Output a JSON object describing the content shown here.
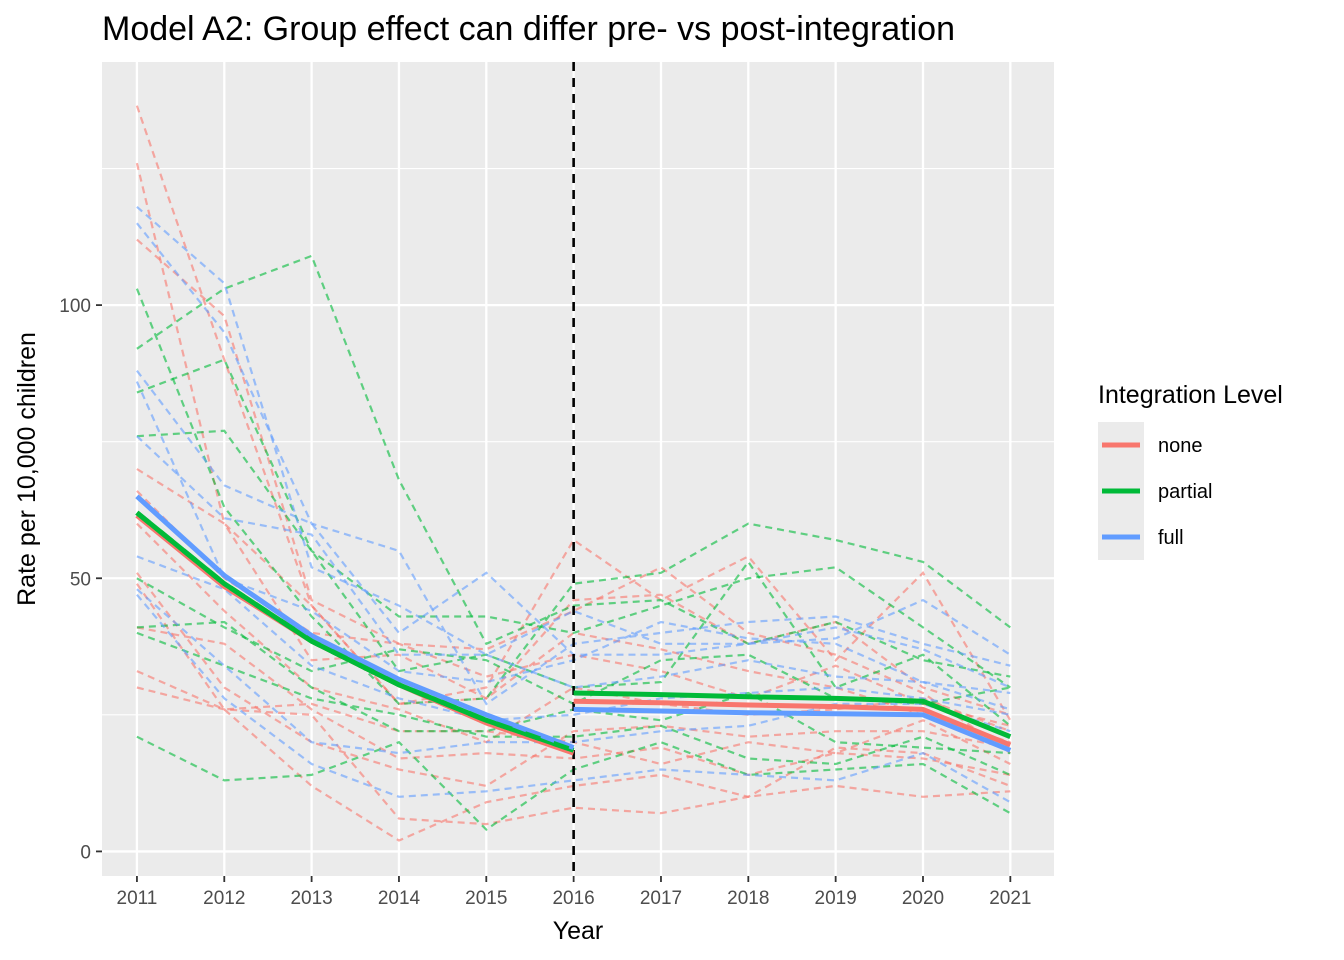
{
  "chart_data": {
    "type": "line",
    "title": "Model A2: Group effect can differ pre- vs post-integration",
    "xlabel": "Year",
    "ylabel": "Rate per 10,000 children",
    "x": [
      2011,
      2012,
      2013,
      2014,
      2015,
      2016,
      2017,
      2018,
      2019,
      2020,
      2021
    ],
    "xlim": [
      2010.6,
      2021.5
    ],
    "ylim": [
      -4.5,
      144.5
    ],
    "y_ticks": [
      0,
      50,
      100
    ],
    "x_ticks": [
      2011,
      2012,
      2013,
      2014,
      2015,
      2016,
      2017,
      2018,
      2019,
      2020,
      2021
    ],
    "grid": true,
    "vline": {
      "x": 2016,
      "style": "dashed",
      "color": "#000000"
    },
    "legend": {
      "title": "Integration Level",
      "position": "right",
      "entries": [
        {
          "label": "none",
          "color": "#F8766D"
        },
        {
          "label": "partial",
          "color": "#00BA38"
        },
        {
          "label": "full",
          "color": "#619CFF"
        }
      ]
    },
    "fitted": [
      {
        "name": "none",
        "color": "#F8766D",
        "pre": {
          "x": [
            2011,
            2012,
            2013,
            2014,
            2015,
            2016
          ],
          "y": [
            61.5,
            48.5,
            38.5,
            30.5,
            23.5,
            18.0
          ]
        },
        "post": {
          "x": [
            2016,
            2017,
            2018,
            2019,
            2020,
            2021
          ],
          "y": [
            27.5,
            27.2,
            26.8,
            26.5,
            26.0,
            19.5
          ]
        }
      },
      {
        "name": "partial",
        "color": "#00BA38",
        "pre": {
          "x": [
            2011,
            2012,
            2013,
            2014,
            2015,
            2016
          ],
          "y": [
            62.0,
            49.0,
            38.5,
            30.5,
            24.0,
            18.5
          ]
        },
        "post": {
          "x": [
            2016,
            2017,
            2018,
            2019,
            2020,
            2021
          ],
          "y": [
            29.0,
            28.7,
            28.3,
            28.0,
            27.5,
            21.0
          ]
        }
      },
      {
        "name": "full",
        "color": "#619CFF",
        "pre": {
          "x": [
            2011,
            2012,
            2013,
            2014,
            2015,
            2016
          ],
          "y": [
            65.0,
            50.5,
            39.5,
            31.5,
            25.0,
            19.0
          ]
        },
        "post": {
          "x": [
            2016,
            2017,
            2018,
            2019,
            2020,
            2021
          ],
          "y": [
            26.0,
            25.7,
            25.4,
            25.2,
            25.0,
            18.5
          ]
        }
      }
    ],
    "series": [
      {
        "group": "none",
        "color": "#F8766D",
        "values": [
          136.5,
          90,
          45,
          27,
          30,
          57,
          46,
          54,
          35,
          51,
          24
        ]
      },
      {
        "group": "none",
        "color": "#F8766D",
        "values": [
          126,
          60,
          45,
          27,
          28,
          46,
          47,
          38,
          42,
          30,
          25
        ]
      },
      {
        "group": "none",
        "color": "#F8766D",
        "values": [
          112,
          98,
          46,
          38,
          37,
          44,
          52,
          40,
          36,
          29,
          18
        ]
      },
      {
        "group": "none",
        "color": "#F8766D",
        "values": [
          70,
          60,
          35,
          36,
          28,
          40,
          37,
          33,
          30,
          25,
          20
        ]
      },
      {
        "group": "none",
        "color": "#F8766D",
        "values": [
          66,
          50,
          40,
          38,
          32,
          36,
          33,
          28,
          34,
          27,
          23
        ]
      },
      {
        "group": "none",
        "color": "#F8766D",
        "values": [
          60,
          44,
          30,
          26,
          20,
          30,
          27,
          25,
          26,
          28,
          22
        ]
      },
      {
        "group": "none",
        "color": "#F8766D",
        "values": [
          51,
          30,
          20,
          15,
          12,
          22,
          23,
          21,
          22,
          22,
          19
        ]
      },
      {
        "group": "none",
        "color": "#F8766D",
        "values": [
          49,
          26,
          27,
          22,
          22,
          20,
          16,
          20,
          18,
          24,
          16
        ]
      },
      {
        "group": "none",
        "color": "#F8766D",
        "values": [
          41,
          38,
          26,
          17,
          18,
          17,
          19,
          14,
          18,
          17,
          14
        ]
      },
      {
        "group": "none",
        "color": "#F8766D",
        "values": [
          33,
          26,
          12,
          2,
          9,
          12,
          14,
          10,
          19,
          18,
          12
        ]
      },
      {
        "group": "none",
        "color": "#F8766D",
        "values": [
          30,
          26,
          25,
          6,
          5,
          8,
          7,
          10,
          12,
          10,
          11
        ]
      },
      {
        "group": "partial",
        "color": "#00BA38",
        "values": [
          103,
          63,
          43,
          27,
          28,
          49,
          51,
          60,
          57,
          53,
          41
        ]
      },
      {
        "group": "partial",
        "color": "#00BA38",
        "values": [
          92,
          103,
          109,
          68,
          38,
          45,
          46,
          38,
          42,
          35,
          32
        ]
      },
      {
        "group": "partial",
        "color": "#00BA38",
        "values": [
          84,
          90,
          55,
          43,
          43,
          40,
          45,
          50,
          52,
          41,
          30
        ]
      },
      {
        "group": "partial",
        "color": "#00BA38",
        "values": [
          76,
          77,
          55,
          33,
          36,
          30,
          31,
          53,
          30,
          36,
          23
        ]
      },
      {
        "group": "partial",
        "color": "#00BA38",
        "values": [
          50,
          41,
          33,
          37,
          35,
          27,
          35,
          36,
          28,
          27,
          30
        ]
      },
      {
        "group": "partial",
        "color": "#00BA38",
        "values": [
          41,
          42,
          30,
          22,
          22,
          26,
          24,
          29,
          20,
          19,
          18
        ]
      },
      {
        "group": "partial",
        "color": "#00BA38",
        "values": [
          40,
          34,
          28,
          25,
          21,
          21,
          23,
          17,
          16,
          21,
          14
        ]
      },
      {
        "group": "partial",
        "color": "#00BA38",
        "values": [
          21,
          13,
          14,
          20,
          4,
          15,
          20,
          14,
          15,
          16,
          7
        ]
      },
      {
        "group": "full",
        "color": "#619CFF",
        "values": [
          118,
          104,
          52,
          45,
          36,
          44,
          38,
          38,
          39,
          46,
          36
        ]
      },
      {
        "group": "full",
        "color": "#619CFF",
        "values": [
          115,
          95,
          60,
          55,
          27,
          38,
          40,
          42,
          43,
          38,
          34
        ]
      },
      {
        "group": "full",
        "color": "#619CFF",
        "values": [
          88,
          67,
          60,
          40,
          51,
          36,
          36,
          38,
          41,
          37,
          30
        ]
      },
      {
        "group": "full",
        "color": "#619CFF",
        "values": [
          86,
          50,
          44,
          33,
          31,
          35,
          42,
          39,
          38,
          31,
          29
        ]
      },
      {
        "group": "full",
        "color": "#619CFF",
        "values": [
          76,
          61,
          58,
          36,
          36,
          30,
          32,
          35,
          32,
          31,
          26
        ]
      },
      {
        "group": "full",
        "color": "#619CFF",
        "values": [
          54,
          48,
          34,
          28,
          24,
          25,
          28,
          29,
          30,
          28,
          25
        ]
      },
      {
        "group": "full",
        "color": "#619CFF",
        "values": [
          48,
          34,
          20,
          18,
          20,
          20,
          22,
          23,
          27,
          27,
          22
        ]
      },
      {
        "group": "full",
        "color": "#619CFF",
        "values": [
          47,
          28,
          16,
          10,
          11,
          13,
          15,
          14,
          13,
          18,
          9
        ]
      }
    ]
  }
}
